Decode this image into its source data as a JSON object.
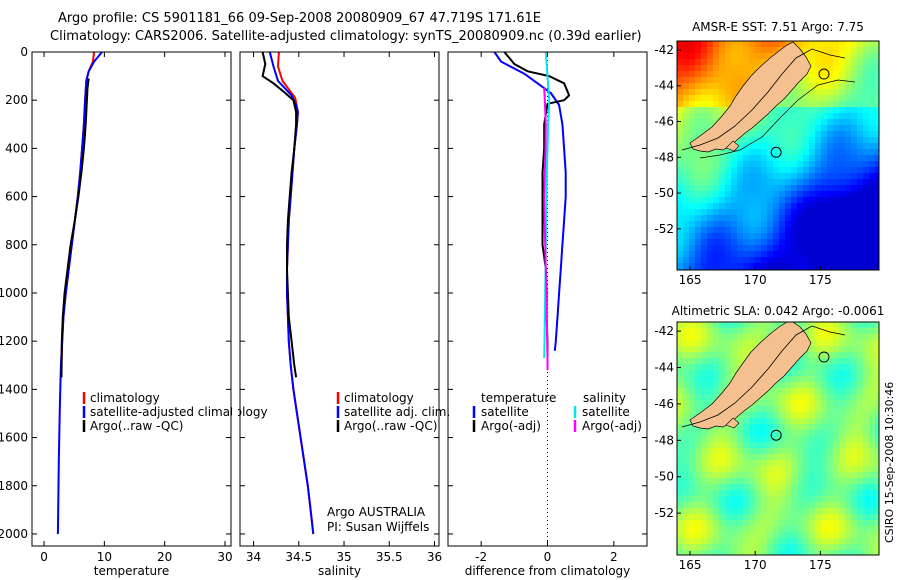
{
  "figure": {
    "title_line1": "Argo profile: CS 5901181_66 09-Sep-2008 20080909_67 47.719S 171.61E",
    "title_line2": "Climatology: CARS2006. Satellite-adjusted climatology: synTS_20080909.nc (0.39d earlier)",
    "footer_stamp": "CSIRO 15-Sep-2008 10:30:46",
    "institution_note": [
      "Argo AUSTRALIA",
      "PI: Susan Wijffels"
    ]
  },
  "colors": {
    "climatology": "#ff0000",
    "satellite": "#0000ff",
    "argo": "#000000",
    "salinity_satellite": "#00e5ee",
    "salinity_argo": "#ff00ff",
    "map_land": "#f5c08f"
  },
  "chart_data": [
    {
      "type": "line",
      "xlabel": "temperature",
      "ylabel": "",
      "xlim": [
        -2,
        31
      ],
      "ylim": [
        2050,
        0
      ],
      "xticks": [
        0,
        10,
        20,
        30
      ],
      "yticks": [
        0,
        200,
        400,
        600,
        800,
        1000,
        1200,
        1400,
        1600,
        1800,
        2000
      ],
      "y_reversed": true,
      "legend": {
        "placement": "lower-right",
        "entries": [
          {
            "label": "climatology",
            "color": "#ff0000"
          },
          {
            "label": "satellite-adjusted climatology",
            "color": "#0000ff"
          },
          {
            "label": "Argo(..raw -QC)",
            "color": "#000000"
          }
        ]
      },
      "series": [
        {
          "name": "climatology",
          "color": "#ff0000",
          "points": [
            [
              8.3,
              0
            ],
            [
              8.1,
              40
            ],
            [
              7.4,
              80
            ],
            [
              7.0,
              120
            ],
            [
              6.9,
              160
            ],
            [
              6.8,
              200
            ],
            [
              6.6,
              300
            ],
            [
              6.3,
              400
            ],
            [
              6.0,
              500
            ],
            [
              5.6,
              600
            ],
            [
              5.1,
              700
            ],
            [
              4.6,
              800
            ],
            [
              4.1,
              900
            ],
            [
              3.6,
              1000
            ],
            [
              3.2,
              1100
            ],
            [
              3.0,
              1200
            ],
            [
              2.9,
              1300
            ],
            [
              2.8,
              1350
            ]
          ]
        },
        {
          "name": "satellite-adjusted climatology",
          "color": "#0000ff",
          "points": [
            [
              9.6,
              0
            ],
            [
              8.3,
              40
            ],
            [
              7.4,
              80
            ],
            [
              7.0,
              120
            ],
            [
              6.9,
              160
            ],
            [
              6.8,
              200
            ],
            [
              6.6,
              300
            ],
            [
              6.3,
              400
            ],
            [
              6.0,
              500
            ],
            [
              5.6,
              600
            ],
            [
              5.1,
              700
            ],
            [
              4.6,
              800
            ],
            [
              4.1,
              900
            ],
            [
              3.6,
              1000
            ],
            [
              3.2,
              1100
            ],
            [
              3.0,
              1200
            ],
            [
              2.8,
              1300
            ],
            [
              2.6,
              1500
            ],
            [
              2.45,
              1700
            ],
            [
              2.35,
              1900
            ],
            [
              2.3,
              2000
            ]
          ]
        },
        {
          "name": "Argo(..raw -QC)",
          "color": "#000000",
          "points": [
            [
              7.4,
              110
            ],
            [
              7.2,
              150
            ],
            [
              7.1,
              200
            ],
            [
              6.9,
              300
            ],
            [
              6.6,
              400
            ],
            [
              6.2,
              500
            ],
            [
              5.7,
              600
            ],
            [
              5.1,
              700
            ],
            [
              4.4,
              800
            ],
            [
              3.9,
              900
            ],
            [
              3.4,
              1000
            ],
            [
              3.1,
              1100
            ],
            [
              2.95,
              1200
            ],
            [
              2.9,
              1350
            ]
          ]
        }
      ]
    },
    {
      "type": "line",
      "xlabel": "salinity",
      "xlim": [
        33.85,
        36.05
      ],
      "ylim": [
        2050,
        0
      ],
      "xticks": [
        34,
        34.5,
        35,
        35.5,
        36
      ],
      "y_reversed": true,
      "legend": {
        "placement": "lower-right",
        "entries": [
          {
            "label": "climatology",
            "color": "#ff0000"
          },
          {
            "label": "satellite adj. clim.",
            "color": "#0000ff"
          },
          {
            "label": "Argo(..raw -QC)",
            "color": "#000000"
          }
        ]
      },
      "series": [
        {
          "name": "climatology",
          "color": "#ff0000",
          "points": [
            [
              34.28,
              0
            ],
            [
              34.27,
              60
            ],
            [
              34.32,
              120
            ],
            [
              34.46,
              190
            ],
            [
              34.49,
              250
            ],
            [
              34.48,
              300
            ],
            [
              34.45,
              400
            ],
            [
              34.43,
              500
            ],
            [
              34.41,
              600
            ],
            [
              34.39,
              700
            ],
            [
              34.38,
              800
            ],
            [
              34.37,
              900
            ],
            [
              34.37,
              1000
            ],
            [
              34.38,
              1100
            ],
            [
              34.39,
              1200
            ],
            [
              34.41,
              1300
            ],
            [
              34.44,
              1400
            ],
            [
              34.48,
              1500
            ],
            [
              34.52,
              1600
            ],
            [
              34.56,
              1700
            ],
            [
              34.6,
              1800
            ],
            [
              34.63,
              1900
            ],
            [
              34.66,
              2000
            ]
          ]
        },
        {
          "name": "satellite adj. clim.",
          "color": "#0000ff",
          "points": [
            [
              34.18,
              0
            ],
            [
              34.22,
              60
            ],
            [
              34.27,
              120
            ],
            [
              34.42,
              180
            ],
            [
              34.47,
              220
            ],
            [
              34.49,
              250
            ],
            [
              34.48,
              300
            ],
            [
              34.45,
              400
            ],
            [
              34.43,
              500
            ],
            [
              34.41,
              600
            ],
            [
              34.39,
              700
            ],
            [
              34.38,
              800
            ],
            [
              34.37,
              900
            ],
            [
              34.37,
              1000
            ],
            [
              34.38,
              1100
            ],
            [
              34.39,
              1200
            ],
            [
              34.41,
              1300
            ],
            [
              34.44,
              1400
            ],
            [
              34.48,
              1500
            ],
            [
              34.52,
              1600
            ],
            [
              34.56,
              1700
            ],
            [
              34.6,
              1800
            ],
            [
              34.63,
              1900
            ],
            [
              34.66,
              2000
            ]
          ]
        },
        {
          "name": "Argo(..raw -QC)",
          "color": "#000000",
          "points": [
            [
              34.1,
              0
            ],
            [
              34.13,
              50
            ],
            [
              34.1,
              100
            ],
            [
              34.22,
              130
            ],
            [
              34.35,
              170
            ],
            [
              34.44,
              200
            ],
            [
              34.47,
              250
            ],
            [
              34.47,
              300
            ],
            [
              34.45,
              400
            ],
            [
              34.42,
              500
            ],
            [
              34.4,
              600
            ],
            [
              34.38,
              700
            ],
            [
              34.37,
              800
            ],
            [
              34.37,
              900
            ],
            [
              34.38,
              1000
            ],
            [
              34.39,
              1100
            ],
            [
              34.42,
              1200
            ],
            [
              34.45,
              1300
            ],
            [
              34.47,
              1350
            ]
          ]
        }
      ]
    },
    {
      "type": "line",
      "xlabel": "difference from climatology",
      "xlim": [
        -3.0,
        3.0
      ],
      "ylim": [
        2050,
        0
      ],
      "xticks": [
        -2,
        0,
        2
      ],
      "y_reversed": true,
      "legend": {
        "placement": "lower-center",
        "headers": [
          "temperature",
          "salinity"
        ],
        "entries": [
          {
            "label": "satellite",
            "color": "#0000ff"
          },
          {
            "label": "Argo(-adj)",
            "color": "#000000"
          },
          {
            "label": "satellite",
            "color": "#00e5ee"
          },
          {
            "label": "Argo(-adj)",
            "color": "#ff00ff"
          }
        ]
      },
      "series": [
        {
          "name": "satellite",
          "color": "#0000ff",
          "points": [
            [
              -1.6,
              0
            ],
            [
              -1.4,
              40
            ],
            [
              -0.7,
              90
            ],
            [
              -0.3,
              130
            ],
            [
              0.1,
              170
            ],
            [
              0.35,
              220
            ],
            [
              0.45,
              300
            ],
            [
              0.5,
              400
            ],
            [
              0.55,
              500
            ],
            [
              0.55,
              600
            ],
            [
              0.5,
              700
            ],
            [
              0.45,
              800
            ],
            [
              0.4,
              900
            ],
            [
              0.35,
              1000
            ],
            [
              0.3,
              1100
            ],
            [
              0.25,
              1200
            ],
            [
              0.22,
              1240
            ]
          ]
        },
        {
          "name": "Argo(-adj)",
          "color": "#000000",
          "points": [
            [
              -1.3,
              0
            ],
            [
              -1.0,
              50
            ],
            [
              -0.6,
              80
            ],
            [
              0.05,
              100
            ],
            [
              0.5,
              130
            ],
            [
              0.65,
              180
            ],
            [
              0.5,
              200
            ],
            [
              0.0,
              215
            ],
            [
              -0.1,
              300
            ],
            [
              -0.1,
              400
            ],
            [
              -0.15,
              500
            ],
            [
              -0.15,
              600
            ],
            [
              -0.15,
              700
            ],
            [
              -0.15,
              800
            ],
            [
              -0.1,
              850
            ],
            [
              -0.05,
              900
            ],
            [
              -0.02,
              1000
            ],
            [
              -0.03,
              1100
            ],
            [
              0.0,
              1200
            ],
            [
              0.0,
              1280
            ]
          ]
        },
        {
          "name": "satellite",
          "color": "#00e5ee",
          "points": [
            [
              -0.05,
              0
            ],
            [
              0.0,
              100
            ],
            [
              0.05,
              200
            ],
            [
              0.02,
              300
            ],
            [
              0.0,
              400
            ],
            [
              -0.02,
              500
            ],
            [
              -0.03,
              600
            ],
            [
              -0.04,
              700
            ],
            [
              -0.05,
              800
            ],
            [
              -0.06,
              900
            ],
            [
              -0.07,
              1000
            ],
            [
              -0.08,
              1100
            ],
            [
              -0.09,
              1200
            ],
            [
              -0.1,
              1270
            ]
          ]
        },
        {
          "name": "Argo(-adj)",
          "color": "#ff00ff",
          "points": [
            [
              -0.1,
              150
            ],
            [
              -0.08,
              200
            ],
            [
              -0.05,
              300
            ],
            [
              -0.06,
              400
            ],
            [
              -0.08,
              500
            ],
            [
              -0.1,
              600
            ],
            [
              -0.09,
              700
            ],
            [
              -0.07,
              800
            ],
            [
              -0.05,
              900
            ],
            [
              -0.03,
              1000
            ],
            [
              -0.02,
              1100
            ],
            [
              -0.01,
              1200
            ],
            [
              0.0,
              1280
            ],
            [
              0.0,
              1320
            ]
          ]
        }
      ]
    },
    {
      "type": "heatmap",
      "title": "AMSR-E SST: 7.51 Argo: 7.75",
      "xlim": [
        164.0,
        179.5
      ],
      "ylim": [
        -54.3,
        -41.5
      ],
      "xticks": [
        165,
        170,
        175
      ],
      "yticks": [
        -42,
        -44,
        -46,
        -48,
        -50,
        -52
      ],
      "profile_marker": {
        "lon": 171.61,
        "lat": -47.72
      },
      "colormap": "jet"
    },
    {
      "type": "heatmap",
      "title": "Altimetric SLA: 0.042 Argo: -0.0061",
      "xlim": [
        164.0,
        179.5
      ],
      "ylim": [
        -54.3,
        -41.5
      ],
      "xticks": [
        165,
        170,
        175
      ],
      "yticks": [
        -42,
        -44,
        -46,
        -48,
        -50,
        -52
      ],
      "profile_marker": {
        "lon": 171.61,
        "lat": -47.72
      },
      "colormap": "jet"
    }
  ]
}
